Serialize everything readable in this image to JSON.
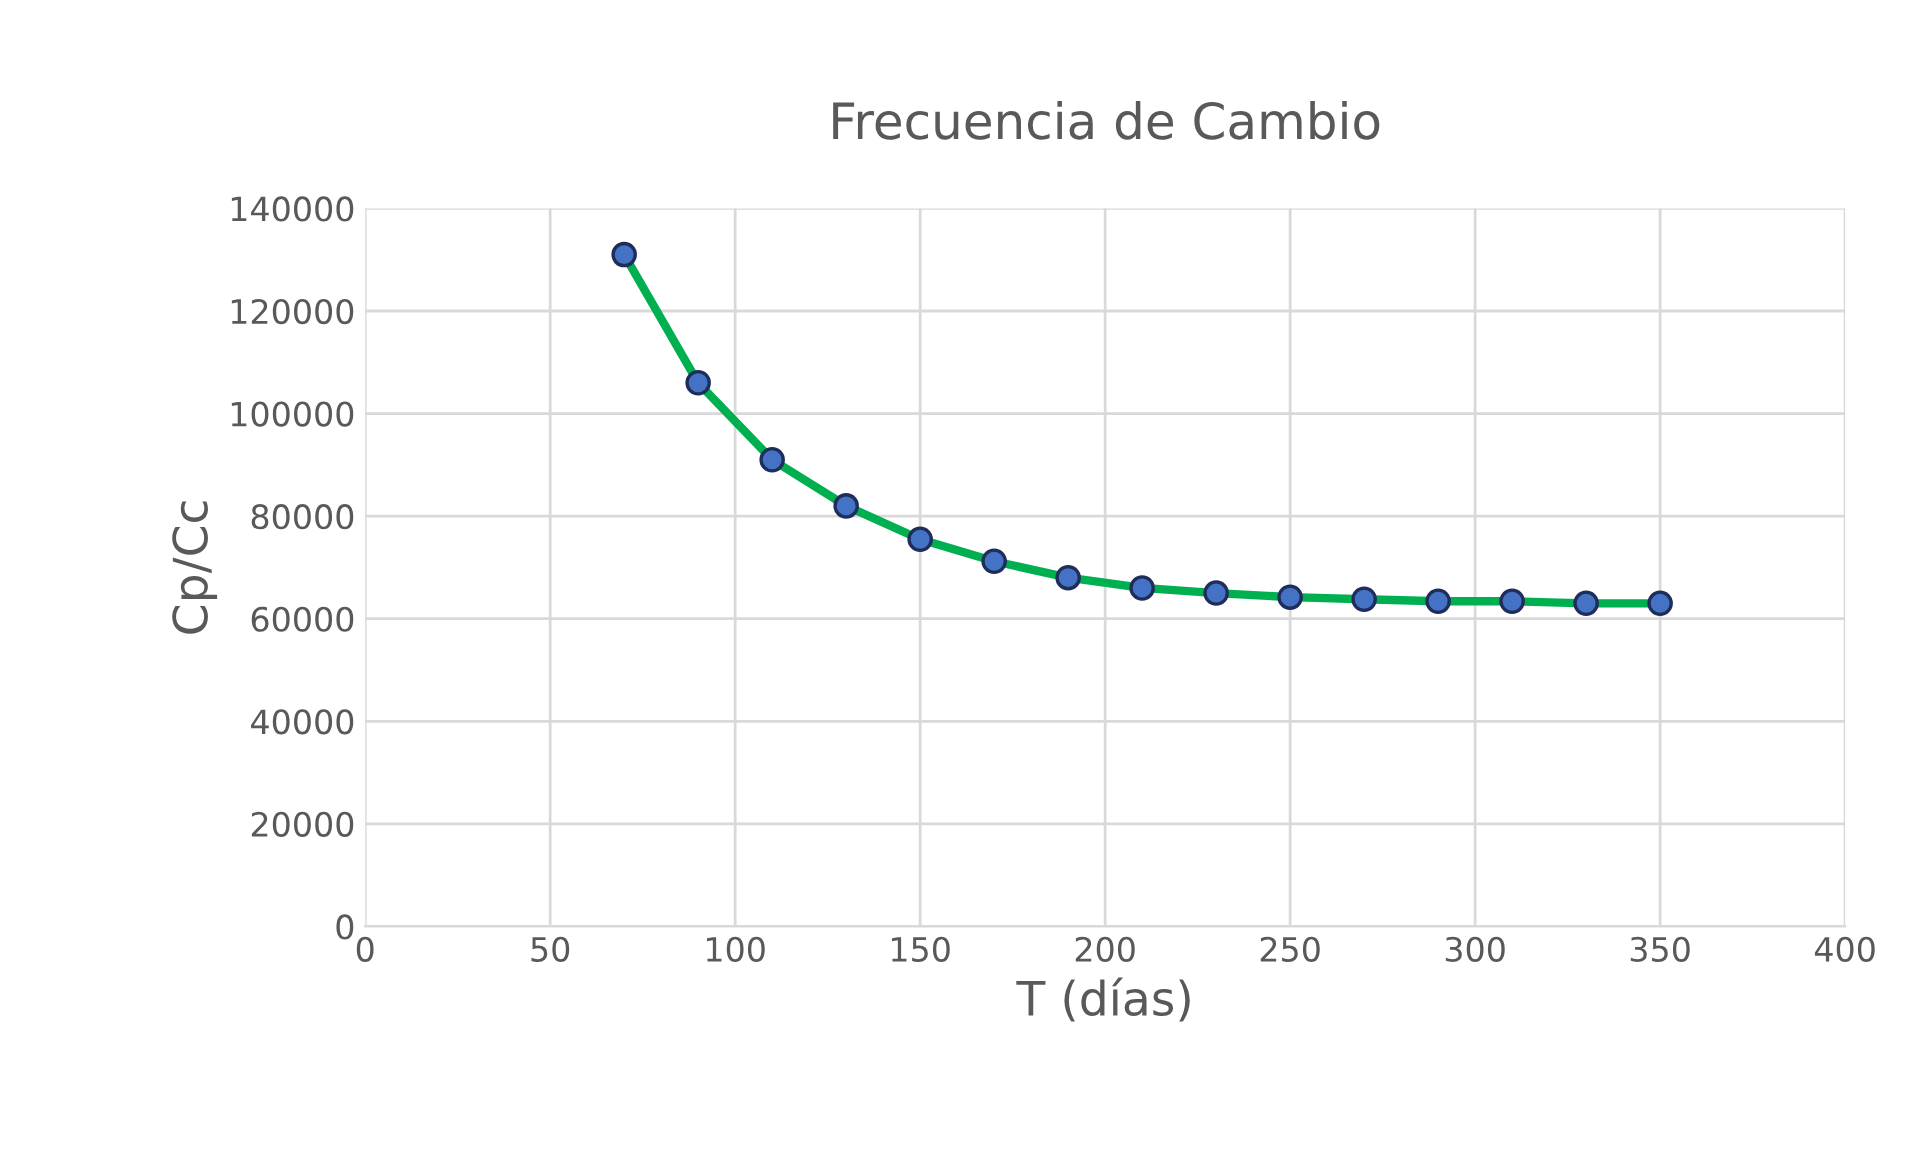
{
  "chart_data": {
    "type": "line",
    "title": "Frecuencia de Cambio",
    "xlabel": "T (días)",
    "ylabel": "Cp/Cc",
    "x": [
      70,
      90,
      110,
      130,
      150,
      170,
      190,
      210,
      230,
      250,
      270,
      290,
      310,
      330,
      350
    ],
    "series": [
      {
        "color": "#00b050",
        "values": [
          131000,
          106000,
          91000,
          82000,
          75500,
          71200,
          68000,
          66000,
          65000,
          64200,
          63800,
          63400,
          63400,
          63000,
          63000
        ]
      }
    ],
    "xlim": [
      0,
      400
    ],
    "xticks": [
      0,
      50,
      100,
      150,
      200,
      250,
      300,
      350,
      400
    ],
    "ylim": [
      0,
      140000
    ],
    "yticks": [
      0,
      20000,
      40000,
      60000,
      80000,
      100000,
      120000,
      140000
    ],
    "grid": true,
    "marker": "circle",
    "line_style": "solid"
  }
}
